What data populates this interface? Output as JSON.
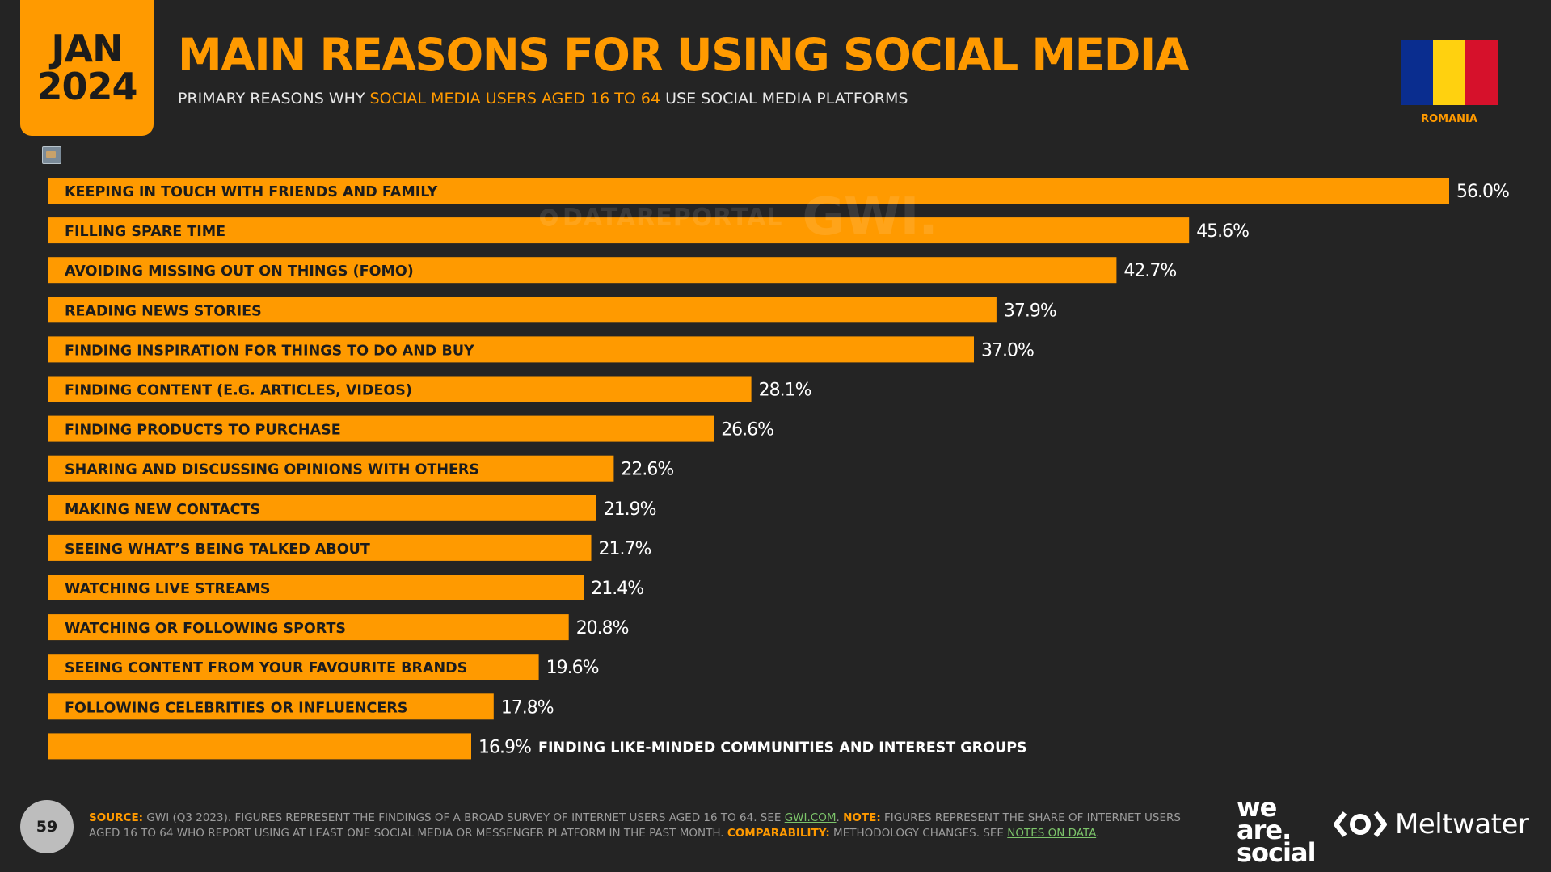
{
  "header": {
    "month": "JAN",
    "year": "2024",
    "title": "MAIN REASONS FOR USING SOCIAL MEDIA",
    "subtitle_pre": "PRIMARY REASONS WHY ",
    "subtitle_highlight": "SOCIAL MEDIA USERS AGED 16 TO 64",
    "subtitle_post": " USE SOCIAL MEDIA PLATFORMS",
    "country": "ROMANIA",
    "flag_colors": [
      "#0A2D8F",
      "#FFD10F",
      "#D6112B"
    ]
  },
  "watermark": {
    "datareportal": "DATAREPORTAL",
    "gwi": "GWI."
  },
  "chart_data": {
    "type": "bar",
    "orientation": "horizontal",
    "bar_color": "#FF9A00",
    "categories": [
      "KEEPING IN TOUCH WITH FRIENDS AND FAMILY",
      "FILLING SPARE TIME",
      "AVOIDING MISSING OUT ON THINGS (FOMO)",
      "READING NEWS STORIES",
      "FINDING INSPIRATION FOR THINGS TO DO AND BUY",
      "FINDING CONTENT (E.G. ARTICLES, VIDEOS)",
      "FINDING PRODUCTS TO PURCHASE",
      "SHARING AND DISCUSSING OPINIONS WITH OTHERS",
      "MAKING NEW CONTACTS",
      "SEEING WHAT’S BEING TALKED ABOUT",
      "WATCHING LIVE STREAMS",
      "WATCHING OR FOLLOWING SPORTS",
      "SEEING CONTENT FROM YOUR FAVOURITE BRANDS",
      "FOLLOWING CELEBRITIES OR INFLUENCERS",
      "FINDING LIKE-MINDED COMMUNITIES AND INTEREST GROUPS"
    ],
    "values": [
      56.0,
      45.6,
      42.7,
      37.9,
      37.0,
      28.1,
      26.6,
      22.6,
      21.9,
      21.7,
      21.4,
      20.8,
      19.6,
      17.8,
      16.9
    ],
    "value_labels": [
      "56.0%",
      "45.6%",
      "42.7%",
      "37.9%",
      "37.0%",
      "28.1%",
      "26.6%",
      "22.6%",
      "21.9%",
      "21.7%",
      "21.4%",
      "20.8%",
      "19.6%",
      "17.8%",
      "16.9%"
    ],
    "unit": "%",
    "xlim": [
      0,
      56.0
    ]
  },
  "footer": {
    "page_number": "59",
    "source_key": "SOURCE:",
    "source_text": " GWI (Q3 2023). FIGURES REPRESENT THE FINDINGS OF A BROAD SURVEY OF INTERNET USERS AGED 16 TO 64. SEE ",
    "source_link": "GWI.COM",
    "source_end": ". ",
    "note_key": "NOTE:",
    "note_text": " FIGURES REPRESENT THE SHARE OF INTERNET USERS AGED 16 TO 64 WHO REPORT USING AT LEAST ONE SOCIAL MEDIA OR MESSENGER PLATFORM IN THE PAST MONTH. ",
    "comparability_key": "COMPARABILITY:",
    "comparability_text": " METHODOLOGY CHANGES. SEE ",
    "notes_link": "NOTES ON DATA",
    "period": ".",
    "logo_was": [
      "we",
      "are.",
      "social"
    ],
    "logo_meltwater": "Meltwater"
  }
}
